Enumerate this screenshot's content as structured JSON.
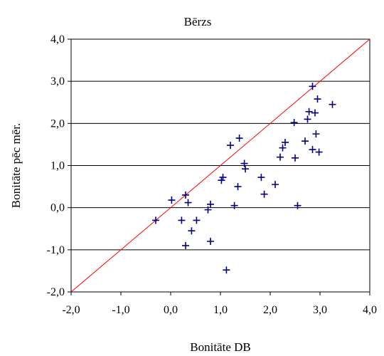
{
  "chart_data": {
    "type": "scatter",
    "title": "Bērzs",
    "xlabel": "Bonitāte DB",
    "ylabel": "Bonitāte pēc mēr.",
    "xlim": [
      -2,
      4
    ],
    "ylim": [
      -2,
      4
    ],
    "xticks": [
      "-2,0",
      "-1,0",
      "0,0",
      "1,0",
      "2,0",
      "3,0",
      "4,0"
    ],
    "yticks": [
      "-2,0",
      "-1,0",
      "0,0",
      "1,0",
      "2,0",
      "3,0",
      "4,0"
    ],
    "grid": "horizontal",
    "reference_line": {
      "from": [
        -2,
        -2
      ],
      "to": [
        4,
        4
      ],
      "color": "#ff0000"
    },
    "marker": "+",
    "marker_color": "#000080",
    "points": [
      [
        -0.3,
        -0.3
      ],
      [
        0.02,
        0.18
      ],
      [
        0.22,
        -0.3
      ],
      [
        0.3,
        0.3
      ],
      [
        0.35,
        0.12
      ],
      [
        0.3,
        -0.9
      ],
      [
        0.42,
        -0.55
      ],
      [
        0.52,
        -0.3
      ],
      [
        0.75,
        -0.05
      ],
      [
        0.8,
        0.08
      ],
      [
        0.8,
        -0.8
      ],
      [
        1.02,
        0.65
      ],
      [
        1.05,
        0.72
      ],
      [
        1.28,
        0.05
      ],
      [
        1.35,
        0.5
      ],
      [
        1.2,
        1.48
      ],
      [
        1.38,
        1.65
      ],
      [
        1.48,
        1.05
      ],
      [
        1.5,
        0.92
      ],
      [
        1.12,
        -1.48
      ],
      [
        1.82,
        0.72
      ],
      [
        1.88,
        0.32
      ],
      [
        2.1,
        0.55
      ],
      [
        2.2,
        1.2
      ],
      [
        2.25,
        1.42
      ],
      [
        2.3,
        1.55
      ],
      [
        2.48,
        2.02
      ],
      [
        2.5,
        1.18
      ],
      [
        2.55,
        0.05
      ],
      [
        2.7,
        1.58
      ],
      [
        2.75,
        2.1
      ],
      [
        2.78,
        2.28
      ],
      [
        2.85,
        1.38
      ],
      [
        2.85,
        2.88
      ],
      [
        2.9,
        2.25
      ],
      [
        2.92,
        1.75
      ],
      [
        2.95,
        2.58
      ],
      [
        2.98,
        1.32
      ],
      [
        3.25,
        2.45
      ]
    ]
  }
}
